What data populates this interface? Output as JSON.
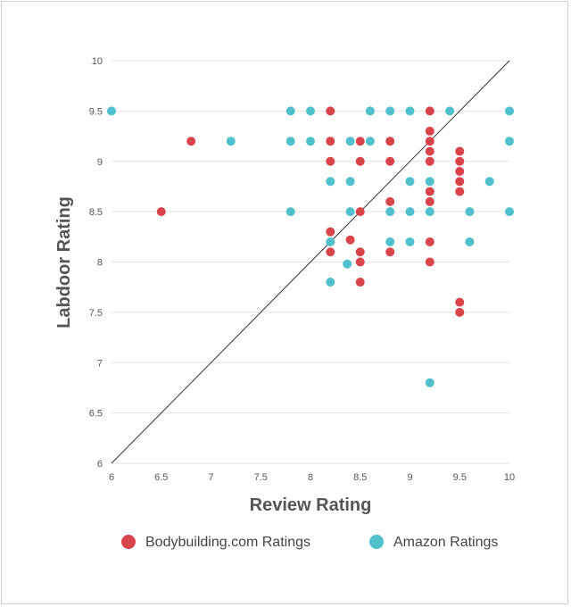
{
  "chart_data": {
    "type": "scatter",
    "xlabel": "Review Rating",
    "ylabel": "Labdoor Rating",
    "xlim": [
      6,
      10
    ],
    "ylim": [
      6,
      10
    ],
    "xticks": [
      "6",
      "6.5",
      "7",
      "7.5",
      "8",
      "8.5",
      "9",
      "9.5",
      "10"
    ],
    "yticks": [
      "6",
      "6.5",
      "7",
      "7.5",
      "8",
      "8.5",
      "9",
      "9.5",
      "10"
    ],
    "grid": "horizontal",
    "reference_line": "y = x",
    "legend_position": "bottom",
    "series": [
      {
        "name": "Bodybuilding.com Ratings",
        "color": "#d9434a",
        "points": [
          [
            6.5,
            8.5
          ],
          [
            6.8,
            9.2
          ],
          [
            8.2,
            9.5
          ],
          [
            8.2,
            9.2
          ],
          [
            8.2,
            9.0
          ],
          [
            8.2,
            8.3
          ],
          [
            8.2,
            8.1
          ],
          [
            8.4,
            8.22
          ],
          [
            8.5,
            9.2
          ],
          [
            8.5,
            9.0
          ],
          [
            8.5,
            8.5
          ],
          [
            8.5,
            8.1
          ],
          [
            8.5,
            8.0
          ],
          [
            8.5,
            7.8
          ],
          [
            8.8,
            9.2
          ],
          [
            8.8,
            9.0
          ],
          [
            8.8,
            8.6
          ],
          [
            8.8,
            8.1
          ],
          [
            9.2,
            9.5
          ],
          [
            9.2,
            9.3
          ],
          [
            9.2,
            9.2
          ],
          [
            9.2,
            9.1
          ],
          [
            9.2,
            9.0
          ],
          [
            9.2,
            8.7
          ],
          [
            9.2,
            8.6
          ],
          [
            9.2,
            8.2
          ],
          [
            9.2,
            8.0
          ],
          [
            9.5,
            9.1
          ],
          [
            9.5,
            9.0
          ],
          [
            9.5,
            8.9
          ],
          [
            9.5,
            8.8
          ],
          [
            9.5,
            8.7
          ],
          [
            9.5,
            7.6
          ],
          [
            9.5,
            7.5
          ]
        ]
      },
      {
        "name": "Amazon Ratings",
        "color": "#4fc0cc",
        "points": [
          [
            6.0,
            9.5
          ],
          [
            7.2,
            9.2
          ],
          [
            7.8,
            9.5
          ],
          [
            7.8,
            9.2
          ],
          [
            7.8,
            8.5
          ],
          [
            8.0,
            9.5
          ],
          [
            8.0,
            9.2
          ],
          [
            8.2,
            8.8
          ],
          [
            8.2,
            8.2
          ],
          [
            8.2,
            7.8
          ],
          [
            8.4,
            9.2
          ],
          [
            8.4,
            8.8
          ],
          [
            8.4,
            8.5
          ],
          [
            8.37,
            7.98
          ],
          [
            8.6,
            9.5
          ],
          [
            8.6,
            9.2
          ],
          [
            8.8,
            9.5
          ],
          [
            8.8,
            8.5
          ],
          [
            8.8,
            8.2
          ],
          [
            9.0,
            9.5
          ],
          [
            9.0,
            8.8
          ],
          [
            9.0,
            8.5
          ],
          [
            9.0,
            8.2
          ],
          [
            9.2,
            8.8
          ],
          [
            9.2,
            8.5
          ],
          [
            9.2,
            6.8
          ],
          [
            9.4,
            9.5
          ],
          [
            9.6,
            8.5
          ],
          [
            9.6,
            8.2
          ],
          [
            9.8,
            8.8
          ],
          [
            10.0,
            9.5
          ],
          [
            10.0,
            9.2
          ],
          [
            10.0,
            8.5
          ]
        ]
      }
    ]
  }
}
